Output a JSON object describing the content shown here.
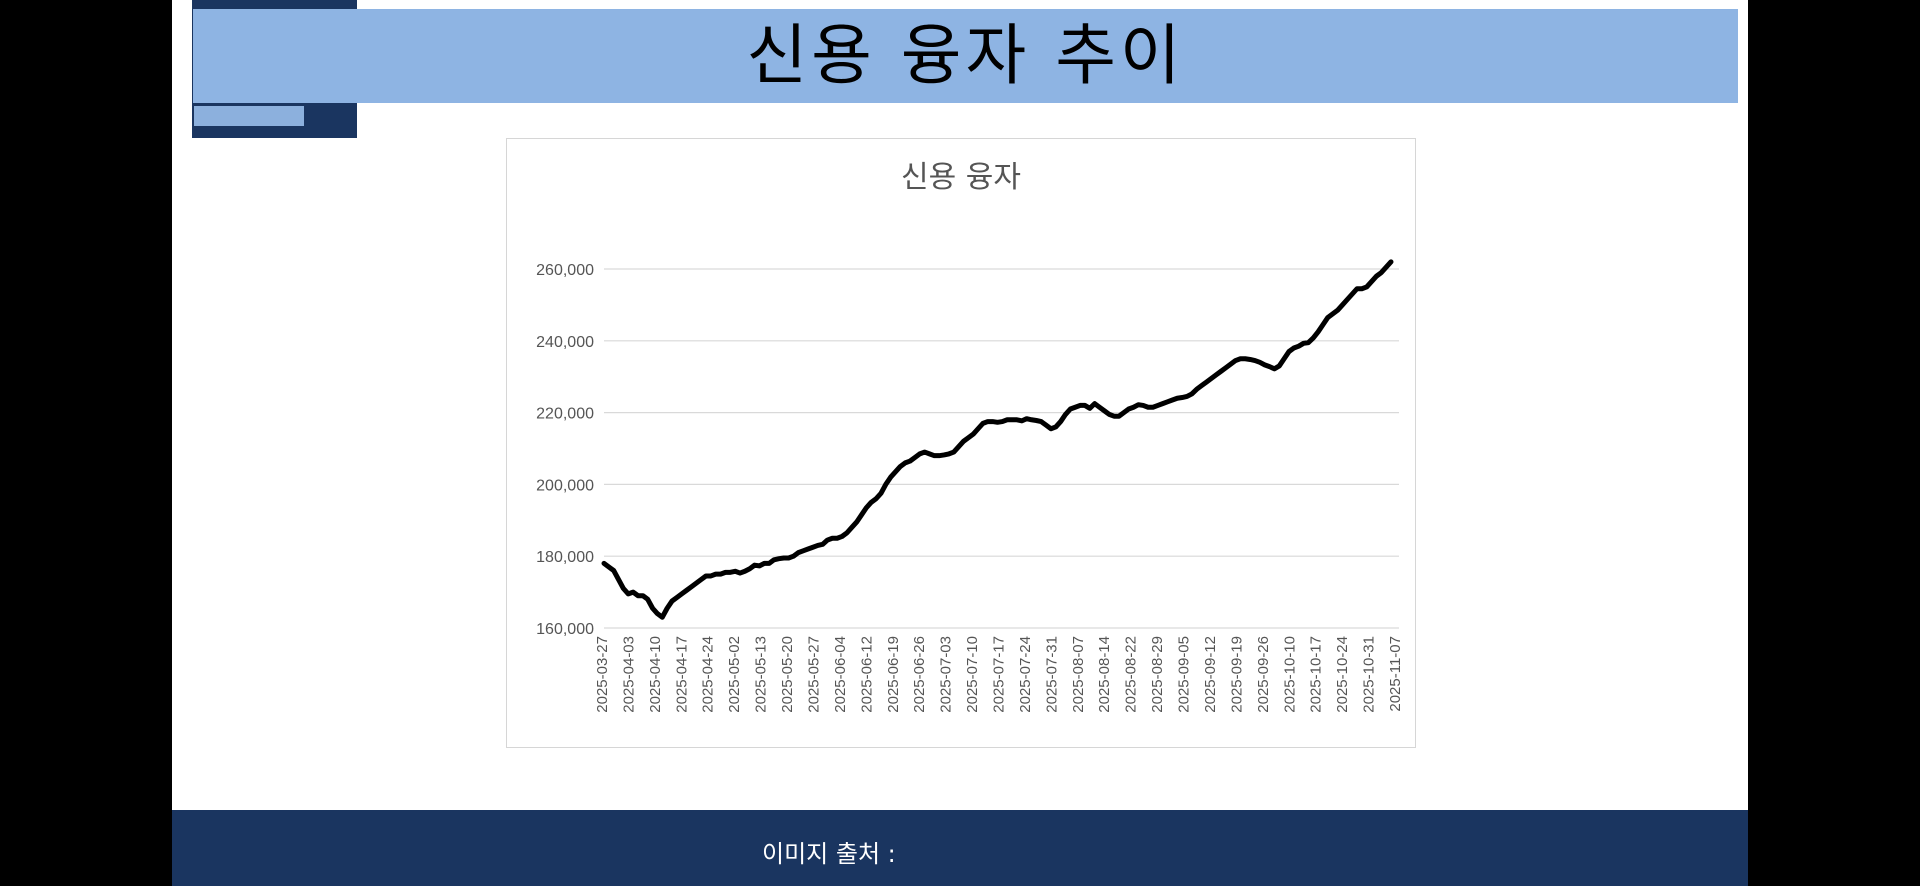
{
  "page": {
    "title": "신용 융자 추이",
    "footer_label": "이미지 출처 :"
  },
  "colors": {
    "banner": "#8eb4e3",
    "navy": "#1a3560",
    "line": "#000000",
    "grid": "#d9d9d9"
  },
  "chart_data": {
    "type": "line",
    "title": "신용 융자",
    "xlabel": "",
    "ylabel": "",
    "ylim": [
      160000,
      260000
    ],
    "yticks": [
      160000,
      180000,
      200000,
      220000,
      240000,
      260000
    ],
    "ytick_labels": [
      "160,000",
      "180,000",
      "200,000",
      "220,000",
      "240,000",
      "260,000"
    ],
    "grid": true,
    "legend": false,
    "x_tick_labels": [
      "2025-03-27",
      "2025-04-03",
      "2025-04-10",
      "2025-04-17",
      "2025-04-24",
      "2025-05-02",
      "2025-05-13",
      "2025-05-20",
      "2025-05-27",
      "2025-06-04",
      "2025-06-12",
      "2025-06-19",
      "2025-06-26",
      "2025-07-03",
      "2025-07-10",
      "2025-07-17",
      "2025-07-24",
      "2025-07-31",
      "2025-08-07",
      "2025-08-14",
      "2025-08-22",
      "2025-08-29",
      "2025-09-05",
      "2025-09-12",
      "2025-09-19",
      "2025-09-26",
      "2025-10-10",
      "2025-10-17",
      "2025-10-24",
      "2025-10-31",
      "2025-11-07"
    ],
    "series": [
      {
        "values": [
          178000,
          177000,
          176000,
          173500,
          171000,
          169500,
          170000,
          169000,
          169000,
          168000,
          165500,
          164000,
          163000,
          165500,
          167500,
          168500,
          169500,
          170500,
          171500,
          172500,
          173500,
          174500,
          174500,
          175000,
          175000,
          175500,
          175500,
          175800,
          175300,
          175800,
          176500,
          177500,
          177300,
          178000,
          178000,
          179000,
          179300,
          179500,
          179500,
          180000,
          181000,
          181500,
          182000,
          182500,
          183000,
          183300,
          184500,
          185000,
          185000,
          185500,
          186500,
          188000,
          189500,
          191500,
          193500,
          195000,
          196000,
          197500,
          200000,
          202000,
          203500,
          205000,
          206000,
          206500,
          207500,
          208500,
          209000,
          208500,
          208000,
          208000,
          208200,
          208500,
          209000,
          210500,
          212000,
          213000,
          214000,
          215500,
          217000,
          217500,
          217500,
          217300,
          217500,
          218000,
          218000,
          218000,
          217700,
          218300,
          218000,
          217800,
          217500,
          216500,
          215500,
          216000,
          217500,
          219500,
          221000,
          221500,
          222000,
          222000,
          221200,
          222500,
          221500,
          220500,
          219500,
          219000,
          219000,
          220000,
          221000,
          221500,
          222200,
          222000,
          221500,
          221500,
          222000,
          222500,
          223000,
          223500,
          224000,
          224200,
          224500,
          225200,
          226500,
          227500,
          228500,
          229500,
          230500,
          231500,
          232500,
          233500,
          234500,
          235000,
          235000,
          234800,
          234500,
          234000,
          233300,
          232800,
          232200,
          233000,
          235000,
          237000,
          238000,
          238500,
          239300,
          239500,
          240800,
          242500,
          244500,
          246500,
          247500,
          248500,
          250000,
          251500,
          253000,
          254500,
          254500,
          255000,
          256500,
          258000,
          259000,
          260500,
          262000
        ]
      }
    ]
  }
}
